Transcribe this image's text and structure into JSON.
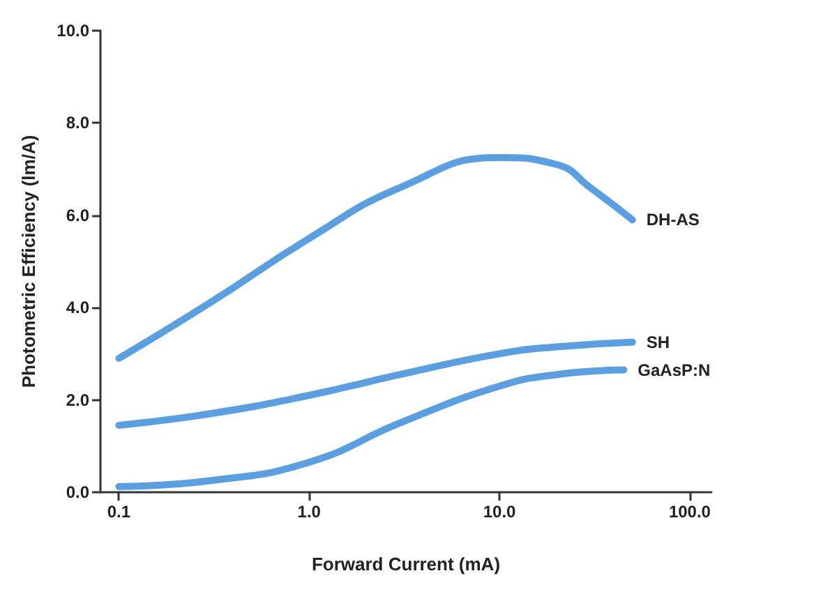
{
  "chart_data": {
    "type": "line",
    "xlabel": "Forward Current (mA)",
    "ylabel": "Photometric Efficiency (lm/A)",
    "log": "x",
    "grid": false,
    "legend": false,
    "marker": "none",
    "line_style": "solid",
    "xlim": [
      0.08,
      130
    ],
    "xticks": [
      {
        "value": 0.1,
        "label": "0.1"
      },
      {
        "value": 1,
        "label": "1.0"
      },
      {
        "value": 10,
        "label": "10.0"
      },
      {
        "value": 100,
        "label": "100.0"
      }
    ],
    "ylim": [
      0,
      10
    ],
    "yticks": [
      {
        "value": 0,
        "label": "0.0"
      },
      {
        "value": 2,
        "label": "2.0"
      },
      {
        "value": 4,
        "label": "4.0"
      },
      {
        "value": 6,
        "label": "6.0"
      },
      {
        "value": 8,
        "label": "8.0"
      },
      {
        "value": 10,
        "label": "10.0"
      }
    ],
    "series": [
      {
        "name": "DH-AS",
        "color": "#5b9fe0",
        "x": [
          0.1,
          0.3,
          1,
          3,
          10,
          20,
          30,
          50
        ],
        "values": [
          2.9,
          4.1,
          5.5,
          6.6,
          7.25,
          7.1,
          6.6,
          5.9
        ]
      },
      {
        "name": "SH",
        "color": "#5b9fe0",
        "x": [
          0.1,
          0.3,
          1,
          3,
          10,
          20,
          50
        ],
        "values": [
          1.45,
          1.7,
          2.1,
          2.55,
          3.0,
          3.15,
          3.25
        ]
      },
      {
        "name": "GaAsP:N",
        "color": "#5b9fe0",
        "x": [
          0.1,
          0.3,
          1,
          3,
          10,
          20,
          45
        ],
        "values": [
          0.12,
          0.25,
          0.65,
          1.5,
          2.3,
          2.55,
          2.65
        ]
      }
    ]
  }
}
